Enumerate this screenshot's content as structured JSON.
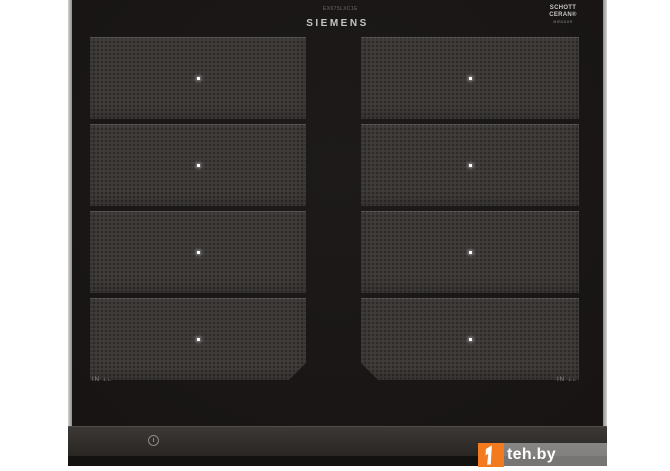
{
  "page": {
    "background": "#ffffff"
  },
  "cooktop": {
    "model_label": "EX675LXC1E",
    "glass_logo": {
      "line1": "SCHOTT",
      "line2": "CERAN®",
      "line3": "MIRADUR"
    },
    "brand_logo": "SIEMENS",
    "markings": {
      "left": "IN",
      "right": "IN",
      "symbol": "⊥∟"
    },
    "colors": {
      "glass": "#1b1817",
      "zone_fill": "#3c3937",
      "trim_panel": "#302d2b",
      "metal_edge": "#b3b3b3"
    }
  },
  "zones": {
    "left_count": 4,
    "right_count": 4,
    "dot_marker": "white-center-dot"
  },
  "icons": {
    "power": "power-circle-icon",
    "zone_dot": "zone-center-dot-icon",
    "watermark_bolt": "orange-bolt-icon"
  },
  "watermark": {
    "text": "teh.by",
    "accent_color": "#f47a1f",
    "bar_color": "rgba(255,255,255,0.42)"
  }
}
